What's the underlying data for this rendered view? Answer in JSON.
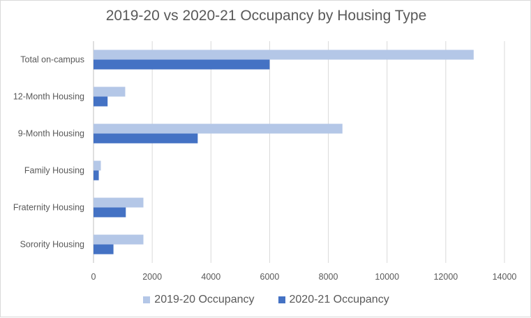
{
  "chart_data": {
    "type": "bar",
    "orientation": "horizontal",
    "title": "2019-20 vs 2020-21 Occupancy by Housing Type",
    "categories": [
      "Total on-campus",
      "12-Month Housing",
      "9-Month Housing",
      "Family Housing",
      "Fraternity Housing",
      "Sorority Housing"
    ],
    "series": [
      {
        "name": "2019-20 Occupancy",
        "color": "#b4c7e7",
        "values": [
          12950,
          1080,
          8480,
          250,
          1700,
          1700
        ]
      },
      {
        "name": "2020-21 Occupancy",
        "color": "#4472c4",
        "values": [
          6000,
          480,
          3550,
          180,
          1100,
          680
        ]
      }
    ],
    "xlim": [
      0,
      14000
    ],
    "xticks": [
      0,
      2000,
      4000,
      6000,
      8000,
      10000,
      12000,
      14000
    ],
    "grid": true,
    "legend_position": "bottom"
  }
}
